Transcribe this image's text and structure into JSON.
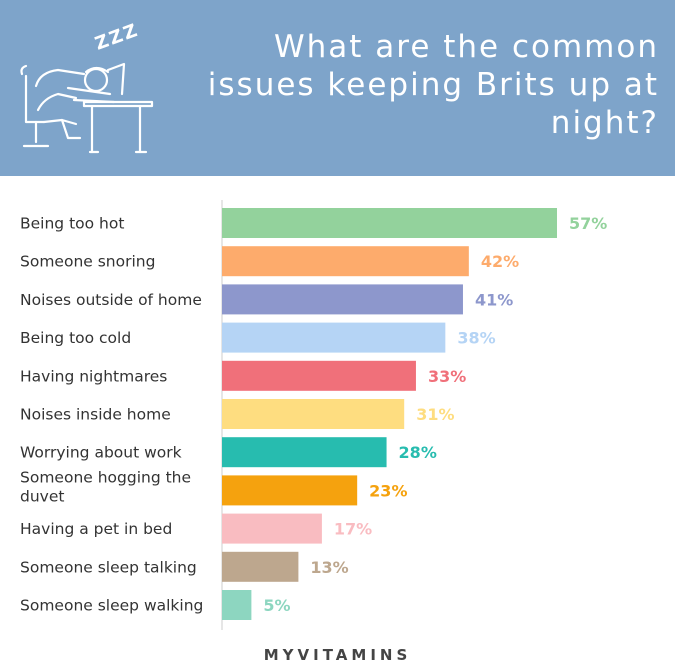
{
  "header": {
    "title": "What are the common issues keeping Brits up at night?",
    "background_color": "#7ea4ca",
    "illustration_icon": "sleeping-at-desk-icon",
    "zzz": "ZZZ"
  },
  "chart_data": {
    "type": "bar",
    "orientation": "horizontal",
    "categories": [
      "Being too hot",
      "Someone snoring",
      "Noises outside of home",
      "Being too cold",
      "Having nightmares",
      "Noises inside home",
      "Worrying about work",
      "Someone hogging the duvet",
      "Having a pet in bed",
      "Someone sleep talking",
      "Someone sleep walking"
    ],
    "values": [
      57,
      42,
      41,
      38,
      33,
      31,
      28,
      23,
      17,
      13,
      5
    ],
    "value_labels": [
      "57%",
      "42%",
      "41%",
      "38%",
      "33%",
      "31%",
      "28%",
      "23%",
      "17%",
      "13%",
      "5%"
    ],
    "colors": [
      "#93d29c",
      "#fdab6c",
      "#8d97cc",
      "#b5d4f5",
      "#f0707a",
      "#fedd80",
      "#27bcaf",
      "#f5a20e",
      "#f9bcc1",
      "#bda78e",
      "#8dd6c0"
    ],
    "xlim": [
      0,
      60
    ],
    "unit": "%",
    "grid": false,
    "legend": "none"
  },
  "footer": {
    "brand": "MYVITAMINS"
  }
}
